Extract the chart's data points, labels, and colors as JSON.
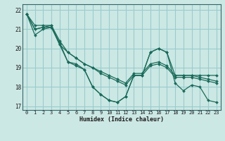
{
  "xlabel": "Humidex (Indice chaleur)",
  "ylabel": "",
  "background_color": "#cce8e4",
  "grid_color": "#99cccc",
  "line_color": "#1a6b5a",
  "ylim": [
    16.8,
    22.3
  ],
  "xlim": [
    -0.5,
    23.5
  ],
  "yticks": [
    17,
    18,
    19,
    20,
    21,
    22
  ],
  "xticks": [
    0,
    1,
    2,
    3,
    4,
    5,
    6,
    7,
    8,
    9,
    10,
    11,
    12,
    13,
    14,
    15,
    16,
    17,
    18,
    19,
    20,
    21,
    22,
    23
  ],
  "series": [
    [
      21.8,
      20.7,
      21.0,
      21.1,
      20.3,
      19.3,
      19.1,
      18.9,
      18.0,
      17.6,
      17.3,
      17.2,
      17.5,
      18.6,
      18.6,
      19.8,
      20.0,
      19.8,
      18.2,
      17.8,
      18.1,
      18.0,
      17.3,
      17.2
    ],
    [
      21.8,
      21.0,
      21.1,
      21.2,
      20.2,
      19.8,
      19.5,
      19.2,
      19.0,
      18.8,
      18.6,
      18.4,
      18.2,
      18.7,
      18.7,
      19.2,
      19.3,
      19.1,
      18.6,
      18.6,
      18.6,
      18.6,
      18.6,
      18.6
    ],
    [
      21.8,
      21.2,
      21.2,
      21.2,
      20.4,
      19.8,
      19.5,
      19.2,
      19.0,
      18.7,
      18.5,
      18.3,
      18.1,
      18.6,
      18.6,
      19.1,
      19.2,
      19.0,
      18.5,
      18.5,
      18.5,
      18.4,
      18.3,
      18.2
    ],
    [
      21.8,
      21.0,
      21.1,
      21.1,
      20.2,
      19.3,
      19.2,
      18.9,
      18.0,
      17.6,
      17.3,
      17.2,
      17.5,
      18.6,
      18.6,
      19.8,
      20.0,
      19.8,
      18.6,
      18.6,
      18.6,
      18.5,
      18.4,
      18.3
    ]
  ]
}
